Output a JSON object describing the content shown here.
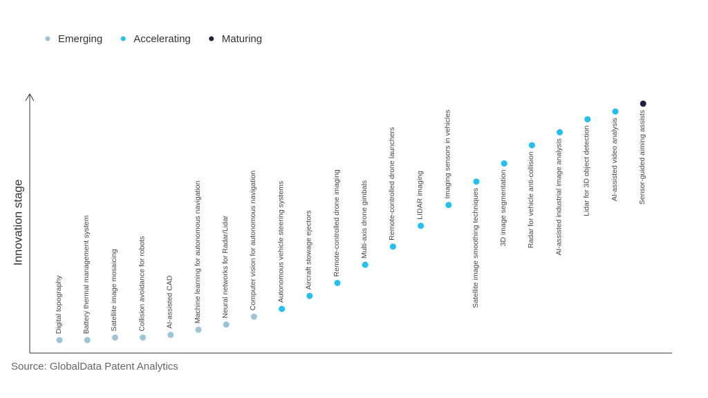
{
  "chart_data": {
    "type": "scatter",
    "y_label": "Innovation stage",
    "source": "Source: GlobalData Patent Analytics",
    "categories": [
      "Digital topography",
      "Battery thermal management system",
      "Satellite image mosaicing",
      "Collision avoidance for robots",
      "AI-assisted CAD",
      "Machine learning for autonomous navigation",
      "Neural networks for Radar/Lidar",
      "Computer vision for autonomous navigation",
      "Autonomous vehicle steering systems",
      "Aircraft stowage ejectors",
      "Remote-controlled drone imaging",
      "Multi-axis drone gimbals",
      "Remote-controlled drone launchers",
      "LIDAR imaging",
      "Imaging sensors in vehicles",
      "Satellite image smoothing techniques",
      "3D image segmentation",
      "Radar for vehicle anti-collision",
      "AI-assisted industrial image analysis",
      "Lidar for 3D object detection",
      "AI-assisted video analysis",
      "Sensor-guided aiming assists"
    ],
    "series": [
      {
        "name": "Emerging",
        "color": "#9ec4d8",
        "values": [
          5,
          5,
          6,
          6,
          7,
          9,
          11,
          14,
          null,
          null,
          null,
          null,
          null,
          null,
          null,
          null,
          null,
          null,
          null,
          null,
          null,
          null
        ]
      },
      {
        "name": "Accelerating",
        "color": "#22c0f0",
        "values": [
          null,
          null,
          null,
          null,
          null,
          null,
          null,
          null,
          17,
          22,
          27,
          34,
          41,
          49,
          57,
          66,
          73,
          80,
          85,
          90,
          93,
          null
        ]
      },
      {
        "name": "Maturing",
        "color": "#2a1b46",
        "values": [
          null,
          null,
          null,
          null,
          null,
          null,
          null,
          null,
          null,
          null,
          null,
          null,
          null,
          null,
          null,
          null,
          null,
          null,
          null,
          null,
          null,
          96
        ]
      }
    ],
    "ylim": [
      0,
      100
    ],
    "legend": "top-left"
  }
}
